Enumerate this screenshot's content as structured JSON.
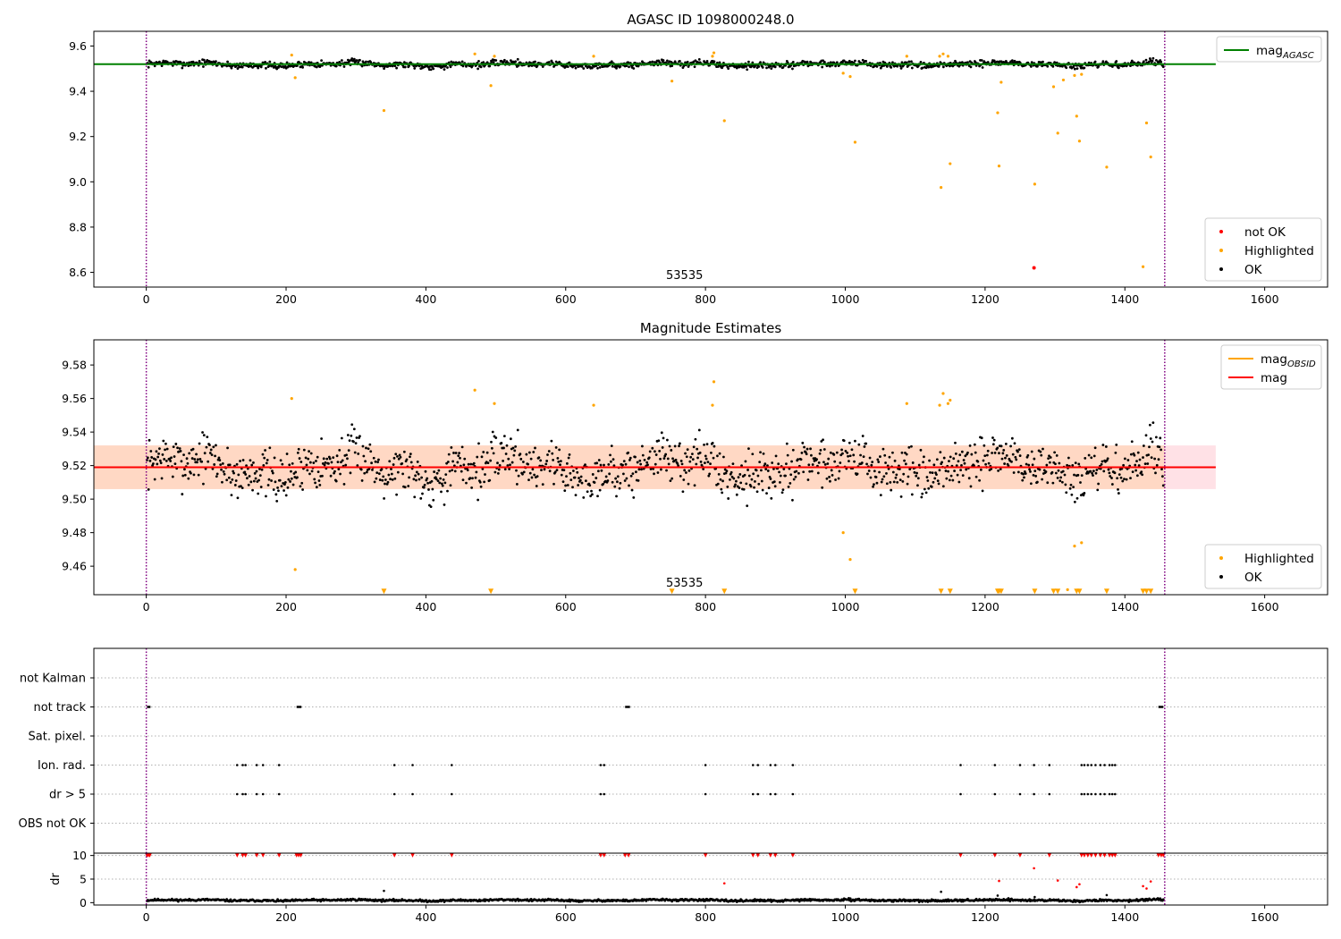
{
  "chart_data": [
    {
      "type": "scatter",
      "title": "AGASC ID 1098000248.0",
      "annotation": "53535",
      "xlim": [
        -75,
        1690
      ],
      "ylim": [
        8.535,
        9.665
      ],
      "xticks": [
        0,
        200,
        400,
        600,
        800,
        1000,
        1200,
        1400,
        1600
      ],
      "yticks": [
        8.6,
        8.8,
        9.0,
        9.2,
        9.4,
        9.6
      ],
      "ytick_decimals": 1,
      "vlines": [
        0,
        1457
      ],
      "hline": {
        "name": "mag_AGASC",
        "value": 9.52,
        "xmax": 1530,
        "color": "#008000"
      },
      "series": [
        {
          "name": "not OK",
          "color": "#ff0000",
          "points": [
            [
              1270,
              8.62
            ]
          ]
        },
        {
          "name": "Highlighted",
          "color": "#ffa500",
          "points": [
            [
              208,
              9.56
            ],
            [
              213,
              9.46
            ],
            [
              340,
              9.315
            ],
            [
              470,
              9.565
            ],
            [
              493,
              9.425
            ],
            [
              498,
              9.555
            ],
            [
              640,
              9.555
            ],
            [
              752,
              9.445
            ],
            [
              810,
              9.555
            ],
            [
              812,
              9.57
            ],
            [
              827,
              9.27
            ],
            [
              997,
              9.48
            ],
            [
              1007,
              9.465
            ],
            [
              1014,
              9.175
            ],
            [
              1088,
              9.555
            ],
            [
              1135,
              9.555
            ],
            [
              1137,
              8.975
            ],
            [
              1140,
              9.565
            ],
            [
              1147,
              9.555
            ],
            [
              1150,
              9.08
            ],
            [
              1218,
              9.305
            ],
            [
              1220,
              9.07
            ],
            [
              1223,
              9.44
            ],
            [
              1271,
              8.99
            ],
            [
              1298,
              9.42
            ],
            [
              1304,
              9.215
            ],
            [
              1312,
              9.45
            ],
            [
              1328,
              9.47
            ],
            [
              1331,
              9.29
            ],
            [
              1335,
              9.18
            ],
            [
              1338,
              9.475
            ],
            [
              1374,
              9.065
            ],
            [
              1426,
              8.625
            ],
            [
              1431,
              9.26
            ],
            [
              1437,
              9.11
            ]
          ]
        },
        {
          "name": "OK",
          "color": "#000000",
          "generated": true,
          "n": 1300,
          "seed": 7,
          "xmin": 1,
          "xmax": 1455,
          "center": 9.519,
          "spread": 0.016
        }
      ],
      "legend": {
        "upper": {
          "position": "top-right",
          "entries": [
            {
              "label": "mag",
              "sub": "AGASC",
              "color": "#008000",
              "kind": "line"
            }
          ]
        },
        "lower": {
          "position": "bottom-right",
          "entries": [
            {
              "label": "not OK",
              "color": "#ff0000",
              "kind": "dot"
            },
            {
              "label": "Highlighted",
              "color": "#ffa500",
              "kind": "dot"
            },
            {
              "label": "OK",
              "color": "#000000",
              "kind": "dot"
            }
          ]
        }
      }
    },
    {
      "type": "scatter",
      "title": "Magnitude Estimates",
      "annotation": "53535",
      "xlim": [
        -75,
        1690
      ],
      "ylim": [
        9.443,
        9.595
      ],
      "xticks": [
        0,
        200,
        400,
        600,
        800,
        1000,
        1200,
        1400,
        1600
      ],
      "yticks": [
        9.46,
        9.48,
        9.5,
        9.52,
        9.54,
        9.56,
        9.58
      ],
      "ytick_decimals": 2,
      "vlines": [
        0,
        1457
      ],
      "band": {
        "min": 9.506,
        "max": 9.532,
        "xmax": 1530,
        "color_inner": "#ffd8c4",
        "color_outer": "#ffe1e6"
      },
      "hline": {
        "name": "mag",
        "value": 9.519,
        "xmax": 1530,
        "color": "#ff0000"
      },
      "series": [
        {
          "name": "Highlighted",
          "color": "#ffa500",
          "points": [
            [
              208,
              9.56
            ],
            [
              213,
              9.458
            ],
            [
              470,
              9.565
            ],
            [
              498,
              9.557
            ],
            [
              640,
              9.556
            ],
            [
              810,
              9.556
            ],
            [
              812,
              9.57
            ],
            [
              997,
              9.48
            ],
            [
              1007,
              9.464
            ],
            [
              1088,
              9.557
            ],
            [
              1135,
              9.556
            ],
            [
              1140,
              9.563
            ],
            [
              1147,
              9.557
            ],
            [
              1150,
              9.559
            ],
            [
              1328,
              9.472
            ],
            [
              1338,
              9.474
            ],
            [
              1318,
              9.446
            ]
          ]
        },
        {
          "name": "Highlighted (off-scale)",
          "color": "#ffa500",
          "marker": "triangle",
          "y": 9.4445,
          "x": [
            340,
            493,
            752,
            827,
            1014,
            1137,
            1150,
            1218,
            1220,
            1223,
            1271,
            1298,
            1304,
            1331,
            1335,
            1374,
            1426,
            1431,
            1437
          ]
        },
        {
          "name": "OK",
          "color": "#000000",
          "generated": true,
          "n": 1300,
          "seed": 7,
          "xmin": 1,
          "xmax": 1455,
          "center": 9.519,
          "spread": 0.016
        }
      ],
      "legend": {
        "upper": {
          "position": "top-right",
          "entries": [
            {
              "label": "mag",
              "sub": "OBSID",
              "color": "#ffa500",
              "kind": "line"
            },
            {
              "label": "mag",
              "color": "#ff0000",
              "kind": "line"
            }
          ]
        },
        "lower": {
          "position": "bottom-right",
          "entries": [
            {
              "label": "Highlighted",
              "color": "#ffa500",
              "kind": "dot"
            },
            {
              "label": "OK",
              "color": "#000000",
              "kind": "dot"
            }
          ]
        }
      }
    },
    {
      "type": "scatter",
      "title": "",
      "xlim": [
        -75,
        1690
      ],
      "categories": [
        "not Kalman",
        "not track",
        "Sat. pixel.",
        "Ion. rad.",
        "dr > 5",
        "OBS not OK"
      ],
      "vlines": [
        0,
        1457
      ],
      "flags": {
        "not Kalman": [],
        "not track": [
          [
            1,
            6
          ],
          [
            215,
            222
          ],
          [
            685,
            692
          ],
          [
            1448,
            1455
          ]
        ],
        "Sat. pixel.": [],
        "Ion. rad.": [
          130,
          138,
          142,
          158,
          167,
          190,
          355,
          381,
          437,
          650,
          655,
          800,
          868,
          875,
          893,
          900,
          925,
          1165,
          1214,
          1250,
          1270,
          1292,
          1338,
          1342,
          1347,
          1352,
          1358,
          1365,
          1371,
          1378,
          1382,
          1386
        ],
        "dr > 5": [
          130,
          138,
          142,
          158,
          167,
          190,
          355,
          381,
          437,
          650,
          655,
          800,
          868,
          875,
          893,
          900,
          925,
          1165,
          1214,
          1250,
          1270,
          1292,
          1338,
          1342,
          1347,
          1352,
          1358,
          1365,
          1371,
          1378,
          1382,
          1386
        ],
        "OBS not OK": []
      }
    },
    {
      "type": "scatter",
      "title": "",
      "xlabel": "",
      "ylabel": "dr",
      "xlim": [
        -75,
        1690
      ],
      "ylim": [
        -0.5,
        10.5
      ],
      "xticks": [
        0,
        200,
        400,
        600,
        800,
        1000,
        1200,
        1400,
        1600
      ],
      "yticks": [
        0,
        5,
        10
      ],
      "vlines": [
        0,
        1457
      ],
      "series": [
        {
          "name": "dr > 5 (clipped)",
          "color": "#ff0000",
          "marker": "triangle",
          "y": 10,
          "x": [
            1,
            3,
            5,
            130,
            138,
            142,
            158,
            167,
            190,
            215,
            218,
            221,
            355,
            381,
            437,
            650,
            655,
            685,
            690,
            800,
            868,
            875,
            893,
            900,
            925,
            1165,
            1214,
            1250,
            1292,
            1338,
            1342,
            1347,
            1352,
            1358,
            1365,
            1371,
            1378,
            1382,
            1386,
            1448,
            1452,
            1455
          ]
        },
        {
          "name": "dr > 5",
          "color": "#ff0000",
          "points": [
            [
              827,
              4.1
            ],
            [
              1220,
              4.6
            ],
            [
              1270,
              7.3
            ],
            [
              1304,
              4.7
            ],
            [
              1331,
              3.3
            ],
            [
              1335,
              3.9
            ],
            [
              1426,
              3.5
            ],
            [
              1431,
              3.0
            ],
            [
              1437,
              4.5
            ]
          ]
        },
        {
          "name": "dr",
          "color": "#000000",
          "generated": true,
          "n": 1300,
          "seed": 11,
          "xmin": 1,
          "xmax": 1455,
          "center": 0.5,
          "spread": 0.25
        },
        {
          "name": "dr (outliers)",
          "color": "#000000",
          "points": [
            [
              340,
              2.5
            ],
            [
              1137,
              2.3
            ],
            [
              1218,
              1.5
            ],
            [
              1271,
              1.2
            ],
            [
              1374,
              1.6
            ]
          ]
        }
      ]
    }
  ]
}
